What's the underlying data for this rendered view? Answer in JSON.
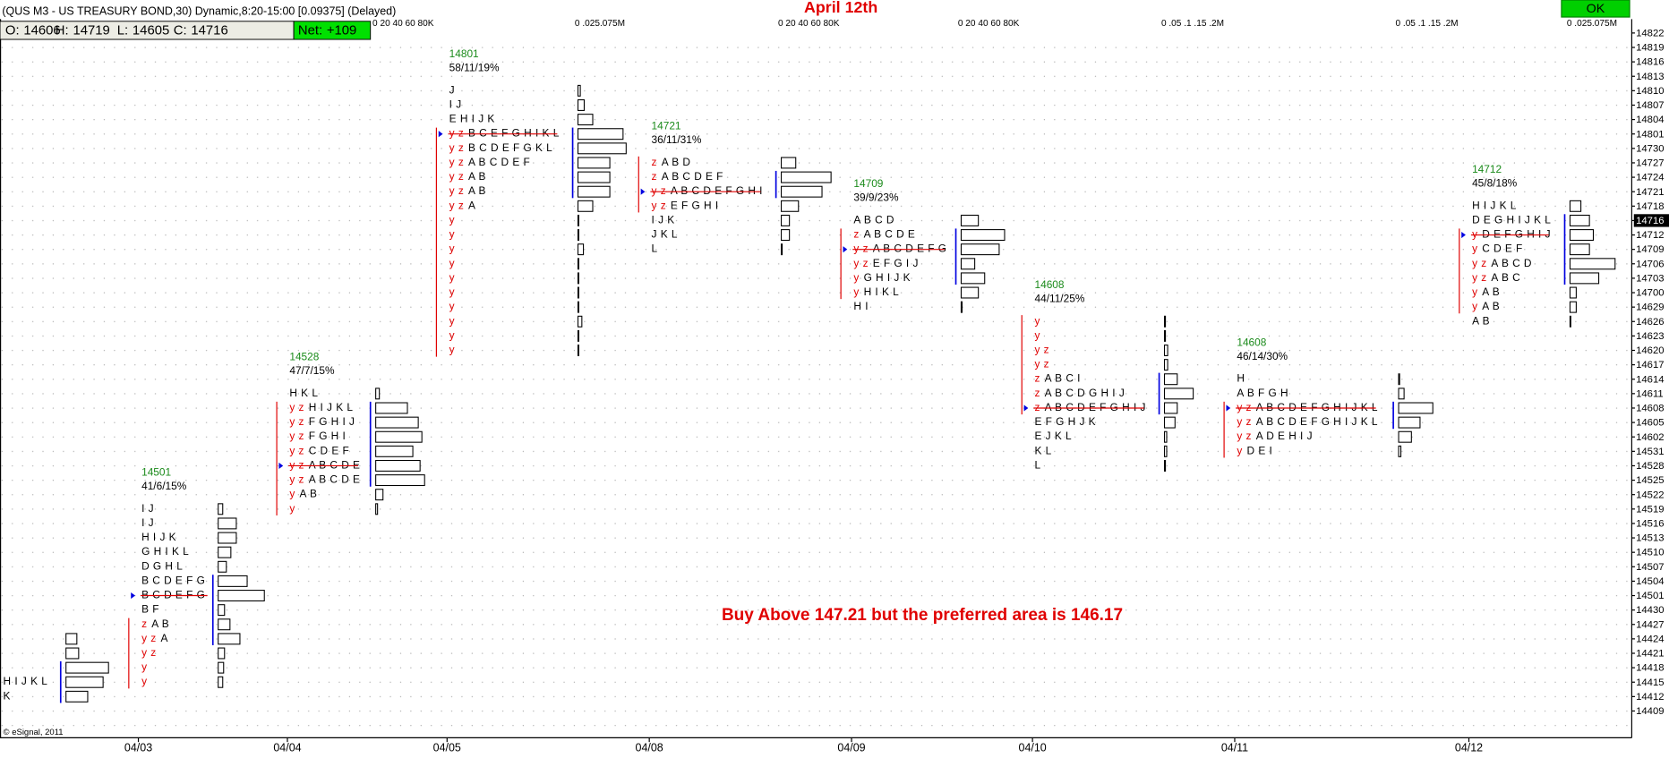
{
  "header": {
    "symbol": "(QUS M3 - US TREASURY BOND,30) Dynamic,8:20-15:00 [0.09375] (Delayed)",
    "ohlc": [
      {
        "label": "O:",
        "value": 14606
      },
      {
        "label": "H:",
        "value": 14719
      },
      {
        "label": "L:",
        "value": 14605
      },
      {
        "label": "C:",
        "value": 14716
      }
    ],
    "net": {
      "label": "Net:",
      "value": "+109"
    },
    "button": "OK"
  },
  "footer": "© eSignal, 2011",
  "chart_data": {
    "type": "market-profile",
    "title": "April 12th",
    "annotation": "Buy Above 147.21 but the preferred area is 146.17",
    "y_levels": [
      14822,
      14819,
      14816,
      14813,
      14810,
      14807,
      14804,
      14801,
      14730,
      14727,
      14724,
      14721,
      14718,
      14716,
      14712,
      14709,
      14706,
      14703,
      14700,
      14629,
      14626,
      14623,
      14620,
      14617,
      14614,
      14611,
      14608,
      14605,
      14602,
      14531,
      14528,
      14525,
      14522,
      14519,
      14516,
      14513,
      14510,
      14507,
      14504,
      14501,
      14430,
      14427,
      14424,
      14421,
      14418,
      14415,
      14412,
      14409
    ],
    "x_labels": [
      "04/03",
      "04/04",
      "04/05",
      "04/08",
      "04/09",
      "04/10",
      "04/11",
      "04/12"
    ],
    "profiles": [
      {
        "rows": [
          {
            "price": 14415,
            "day": "H I J K L"
          },
          {
            "price": 14412,
            "day": "K"
          }
        ],
        "volumes": [
          {
            "price": 14424,
            "volume": 12
          },
          {
            "price": 14421,
            "volume": 14
          },
          {
            "price": 14418,
            "volume": 47
          },
          {
            "price": 14415,
            "volume": 41
          },
          {
            "price": 14412,
            "volume": 24
          }
        ]
      },
      {
        "value": 14501,
        "stats": "41/6/15%",
        "rows": [
          {
            "price": 14519,
            "day": "I J"
          },
          {
            "price": 14516,
            "day": "I J"
          },
          {
            "price": 14513,
            "day": "H I J K"
          },
          {
            "price": 14510,
            "day": "G H I K L"
          },
          {
            "price": 14507,
            "day": "D G H L"
          },
          {
            "price": 14504,
            "day": "B C D E F G"
          },
          {
            "price": 14501,
            "day": "B C D E F G"
          },
          {
            "price": 14430,
            "day": "B F"
          },
          {
            "price": 14427,
            "overnight": "z",
            "day": "A B"
          },
          {
            "price": 14424,
            "overnight": "y z",
            "day": "A"
          },
          {
            "price": 14421,
            "overnight": "y z"
          },
          {
            "price": 14418,
            "overnight": "y"
          },
          {
            "price": 14415,
            "overnight": "y"
          }
        ],
        "volumes": [
          {
            "price": 14519,
            "volume": 5
          },
          {
            "price": 14516,
            "volume": 20
          },
          {
            "price": 14513,
            "volume": 20
          },
          {
            "price": 14510,
            "volume": 14
          },
          {
            "price": 14507,
            "volume": 9
          },
          {
            "price": 14504,
            "volume": 32
          },
          {
            "price": 14501,
            "volume": 51
          },
          {
            "price": 14430,
            "volume": 7
          },
          {
            "price": 14427,
            "volume": 13
          },
          {
            "price": 14424,
            "volume": 24
          },
          {
            "price": 14421,
            "volume": 7
          },
          {
            "price": 14418,
            "volume": 6
          },
          {
            "price": 14415,
            "volume": 5
          }
        ]
      },
      {
        "value": 14528,
        "stats": "47/7/15%",
        "scale_label": "0  20 40 60 80K",
        "rows": [
          {
            "price": 14611,
            "day": "H K L"
          },
          {
            "price": 14608,
            "overnight": "y z",
            "day": "H I J K L"
          },
          {
            "price": 14605,
            "overnight": "y z",
            "day": "F G H I J"
          },
          {
            "price": 14602,
            "overnight": "y z",
            "day": "F G H I"
          },
          {
            "price": 14531,
            "overnight": "y z",
            "day": "C D E F"
          },
          {
            "price": 14528,
            "overnight": "y z",
            "day": "A B C D E"
          },
          {
            "price": 14525,
            "overnight": "y z",
            "day": "A B C D E"
          },
          {
            "price": 14522,
            "overnight": "y",
            "day": "A B"
          },
          {
            "price": 14519,
            "overnight": "y"
          }
        ],
        "volumes": [
          {
            "price": 14611,
            "volume": 4
          },
          {
            "price": 14608,
            "volume": 35
          },
          {
            "price": 14605,
            "volume": 47
          },
          {
            "price": 14602,
            "volume": 51
          },
          {
            "price": 14531,
            "volume": 41
          },
          {
            "price": 14528,
            "volume": 49
          },
          {
            "price": 14525,
            "volume": 54
          },
          {
            "price": 14522,
            "volume": 8
          },
          {
            "price": 14519,
            "volume": 2
          }
        ]
      },
      {
        "value": 14801,
        "stats": "58/11/19%",
        "scale_label": "0  .025.075M",
        "rows": [
          {
            "price": 14810,
            "day": "J"
          },
          {
            "price": 14807,
            "day": "I J"
          },
          {
            "price": 14804,
            "day": "E H I J K"
          },
          {
            "price": 14801,
            "overnight": "y z",
            "day": "B C E F G H I K L"
          },
          {
            "price": 14730,
            "overnight": "y z",
            "day": "B C D E F G K L"
          },
          {
            "price": 14727,
            "overnight": "y z",
            "day": "A B C D E F"
          },
          {
            "price": 14724,
            "overnight": "y z",
            "day": "A B"
          },
          {
            "price": 14721,
            "overnight": "y z",
            "day": "A B"
          },
          {
            "price": 14718,
            "overnight": "y z",
            "day": "A"
          },
          {
            "price": 14716,
            "overnight": "y"
          },
          {
            "price": 14712,
            "overnight": "y"
          },
          {
            "price": 14709,
            "overnight": "y"
          },
          {
            "price": 14706,
            "overnight": "y"
          },
          {
            "price": 14703,
            "overnight": "y"
          },
          {
            "price": 14700,
            "overnight": "y"
          },
          {
            "price": 14629,
            "overnight": "y"
          },
          {
            "price": 14626,
            "overnight": "y"
          },
          {
            "price": 14623,
            "overnight": "y"
          },
          {
            "price": 14620,
            "overnight": "y"
          }
        ],
        "volumes": [
          {
            "price": 14810,
            "volume": 0.003
          },
          {
            "price": 14807,
            "volume": 0.008
          },
          {
            "price": 14804,
            "volume": 0.019
          },
          {
            "price": 14801,
            "volume": 0.058
          },
          {
            "price": 14730,
            "volume": 0.062
          },
          {
            "price": 14727,
            "volume": 0.041
          },
          {
            "price": 14724,
            "volume": 0.041
          },
          {
            "price": 14721,
            "volume": 0.041
          },
          {
            "price": 14718,
            "volume": 0.019
          },
          {
            "price": 14716,
            "volume": 0.001
          },
          {
            "price": 14712,
            "volume": 0.001
          },
          {
            "price": 14709,
            "volume": 0.007
          },
          {
            "price": 14706,
            "volume": 0.001
          },
          {
            "price": 14703,
            "volume": 0.001
          },
          {
            "price": 14700,
            "volume": 0.001
          },
          {
            "price": 14629,
            "volume": 0.001
          },
          {
            "price": 14626,
            "volume": 0.005
          },
          {
            "price": 14623,
            "volume": 0.001
          },
          {
            "price": 14620,
            "volume": 0.001
          }
        ]
      },
      {
        "value": 14721,
        "stats": "36/11/31%",
        "scale_label": "0  20 40 60 80K",
        "rows": [
          {
            "price": 14727,
            "overnight": "z",
            "day": "A B D"
          },
          {
            "price": 14724,
            "overnight": "z",
            "day": "A B C D E F"
          },
          {
            "price": 14721,
            "overnight": "y z",
            "day": "A B C D E F G H I"
          },
          {
            "price": 14718,
            "overnight": "y z",
            "day": "E F G H I"
          },
          {
            "price": 14716,
            "day": "I J K"
          },
          {
            "price": 14712,
            "day": "J K L"
          },
          {
            "price": 14709,
            "day": "L"
          }
        ],
        "volumes": [
          {
            "price": 14727,
            "volume": 16
          },
          {
            "price": 14724,
            "volume": 55
          },
          {
            "price": 14721,
            "volume": 45
          },
          {
            "price": 14718,
            "volume": 19
          },
          {
            "price": 14716,
            "volume": 9
          },
          {
            "price": 14712,
            "volume": 9
          },
          {
            "price": 14709,
            "volume": 1
          }
        ]
      },
      {
        "value": 14709,
        "stats": "39/9/23%",
        "scale_label": "0  20 40 60 80K",
        "rows": [
          {
            "price": 14716,
            "day": "A B C D"
          },
          {
            "price": 14712,
            "overnight": "z",
            "day": "A B C D E"
          },
          {
            "price": 14709,
            "overnight": "y z",
            "day": "A B C D E F G"
          },
          {
            "price": 14706,
            "overnight": "y z",
            "day": "E F G I J"
          },
          {
            "price": 14703,
            "overnight": "y",
            "day": "G H I J K"
          },
          {
            "price": 14700,
            "overnight": "y",
            "day": "H I K L"
          },
          {
            "price": 14629,
            "day": "H I"
          }
        ],
        "volumes": [
          {
            "price": 14716,
            "volume": 19
          },
          {
            "price": 14712,
            "volume": 48
          },
          {
            "price": 14709,
            "volume": 42
          },
          {
            "price": 14706,
            "volume": 15
          },
          {
            "price": 14703,
            "volume": 26
          },
          {
            "price": 14700,
            "volume": 19
          },
          {
            "price": 14629,
            "volume": 1
          }
        ]
      },
      {
        "value": 14608,
        "stats": "44/11/25%",
        "scale_label": "0  .05 .1  .15 .2M",
        "rows": [
          {
            "price": 14626,
            "overnight": "y"
          },
          {
            "price": 14623,
            "overnight": "y"
          },
          {
            "price": 14620,
            "overnight": "y z"
          },
          {
            "price": 14617,
            "overnight": "y z"
          },
          {
            "price": 14614,
            "overnight": "z",
            "day": "A B C I"
          },
          {
            "price": 14611,
            "overnight": "z",
            "day": "A B C D G H I J"
          },
          {
            "price": 14608,
            "overnight": "z",
            "day": "A B C D E F G H I J"
          },
          {
            "price": 14605,
            "day": "E F G H J K"
          },
          {
            "price": 14602,
            "day": "E J K L"
          },
          {
            "price": 14531,
            "day": "K L"
          },
          {
            "price": 14528,
            "day": "L"
          }
        ],
        "volumes": [
          {
            "price": 14626,
            "volume": 0.003
          },
          {
            "price": 14623,
            "volume": 0.003
          },
          {
            "price": 14620,
            "volume": 0.01
          },
          {
            "price": 14617,
            "volume": 0.01
          },
          {
            "price": 14614,
            "volume": 0.04
          },
          {
            "price": 14611,
            "volume": 0.09
          },
          {
            "price": 14608,
            "volume": 0.04
          },
          {
            "price": 14605,
            "volume": 0.033
          },
          {
            "price": 14602,
            "volume": 0.007
          },
          {
            "price": 14531,
            "volume": 0.007
          },
          {
            "price": 14528,
            "volume": 0.003
          }
        ]
      },
      {
        "value": 14608,
        "stats": "46/14/30%",
        "scale_label": "0  .05 .1  .15 .2M",
        "rows": [
          {
            "price": 14614,
            "day": "H"
          },
          {
            "price": 14611,
            "day": "A B F G H"
          },
          {
            "price": 14608,
            "overnight": "y z",
            "day": "A B C D E F G H I J K L"
          },
          {
            "price": 14605,
            "overnight": "y z",
            "day": "A B C D E F G H I J K L"
          },
          {
            "price": 14602,
            "overnight": "y z",
            "day": "A D E H I J"
          },
          {
            "price": 14531,
            "overnight": "y",
            "day": "D E I"
          }
        ],
        "volumes": [
          {
            "price": 14614,
            "volume": 0.003
          },
          {
            "price": 14611,
            "volume": 0.017
          },
          {
            "price": 14608,
            "volume": 0.107
          },
          {
            "price": 14605,
            "volume": 0.067
          },
          {
            "price": 14602,
            "volume": 0.04
          },
          {
            "price": 14531,
            "volume": 0.007
          }
        ]
      },
      {
        "value": 14712,
        "stats": "45/8/18%",
        "scale_label": "0  .025.075M",
        "rows": [
          {
            "price": 14718,
            "day": "H I J K L"
          },
          {
            "price": 14716,
            "day": "D E G H I J K L"
          },
          {
            "price": 14712,
            "overnight": "y",
            "day": "D E F G H I J"
          },
          {
            "price": 14709,
            "overnight": "y",
            "day": "C D E F"
          },
          {
            "price": 14706,
            "overnight": "y z",
            "day": "A B C D"
          },
          {
            "price": 14703,
            "overnight": "y z",
            "day": "A B C"
          },
          {
            "price": 14700,
            "overnight": "y",
            "day": "A B"
          },
          {
            "price": 14629,
            "overnight": "y",
            "day": "A B"
          },
          {
            "price": 14626,
            "day": "A B"
          }
        ],
        "volumes": [
          {
            "price": 14718,
            "volume": 0.014
          },
          {
            "price": 14716,
            "volume": 0.025
          },
          {
            "price": 14712,
            "volume": 0.03
          },
          {
            "price": 14709,
            "volume": 0.025
          },
          {
            "price": 14706,
            "volume": 0.058
          },
          {
            "price": 14703,
            "volume": 0.037
          },
          {
            "price": 14700,
            "volume": 0.008
          },
          {
            "price": 14629,
            "volume": 0.008
          },
          {
            "price": 14626,
            "volume": 0.001
          }
        ]
      }
    ]
  }
}
